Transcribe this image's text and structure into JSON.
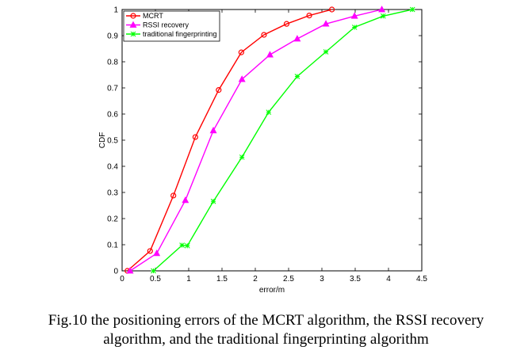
{
  "chart_data": {
    "type": "line",
    "xlabel": "error/m",
    "ylabel": "CDF",
    "xlim": [
      0,
      4.5
    ],
    "ylim": [
      0,
      1
    ],
    "xticks": [
      "0",
      "0.5",
      "1",
      "1.5",
      "2",
      "2.5",
      "3",
      "3.5",
      "4",
      "4.5"
    ],
    "yticks": [
      "0",
      "0.1",
      "0.2",
      "0.3",
      "0.4",
      "0.5",
      "0.6",
      "0.7",
      "0.8",
      "0.9",
      "1"
    ],
    "grid": false,
    "legend_position": "top-left",
    "series": [
      {
        "name": "MCRT",
        "color": "#ff0000",
        "marker": "circle",
        "x": [
          0.08,
          0.42,
          0.77,
          1.1,
          1.45,
          1.79,
          2.13,
          2.47,
          2.81,
          3.15
        ],
        "y": [
          0.0,
          0.076,
          0.288,
          0.512,
          0.692,
          0.836,
          0.903,
          0.945,
          0.977,
          1.0
        ]
      },
      {
        "name": "RSSI recovery",
        "color": "#ff00ff",
        "marker": "triangle",
        "x": [
          0.12,
          0.52,
          0.95,
          1.37,
          1.8,
          2.22,
          2.63,
          3.06,
          3.49,
          3.9
        ],
        "y": [
          0.0,
          0.067,
          0.27,
          0.537,
          0.733,
          0.827,
          0.888,
          0.945,
          0.975,
          1.0
        ]
      },
      {
        "name": "traditional fingerprinting",
        "color": "#00ff00",
        "marker": "star",
        "x": [
          0.47,
          0.9,
          0.98,
          1.37,
          1.8,
          2.2,
          2.63,
          3.06,
          3.49,
          3.92,
          4.36
        ],
        "y": [
          0.0,
          0.098,
          0.096,
          0.266,
          0.435,
          0.607,
          0.744,
          0.838,
          0.932,
          0.975,
          1.0
        ]
      }
    ]
  },
  "caption": {
    "line1": "Fig.10 the positioning errors of the MCRT algorithm, the RSSI recovery",
    "line2": "algorithm, and the traditional fingerprinting algorithm"
  }
}
